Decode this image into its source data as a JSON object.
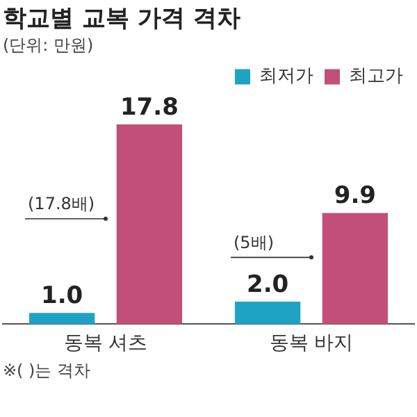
{
  "chart_data": {
    "type": "bar",
    "title": "학교별 교복 가격 격차",
    "subtitle": "(단위: 만원)",
    "categories": [
      "동복 셔츠",
      "동복 바지"
    ],
    "series": [
      {
        "name": "최저가",
        "color": "#1fa3c4",
        "values": [
          1.0,
          2.0
        ],
        "value_labels": [
          "1.0",
          "2.0"
        ]
      },
      {
        "name": "최고가",
        "color": "#c24f78",
        "values": [
          17.8,
          9.9
        ],
        "value_labels": [
          "17.8",
          "9.9"
        ]
      }
    ],
    "legend": "top right",
    "grid": false,
    "annotations": [
      "(17.8배)",
      "(5배)",
      "※( )는 격차"
    ]
  }
}
